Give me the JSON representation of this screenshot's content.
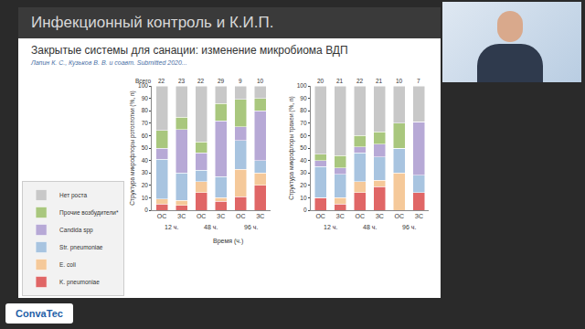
{
  "slide": {
    "title": "Инфекционный контроль и К.И.П.",
    "subtitle": "Закрытые системы для санации: изменение микробиома ВДП",
    "authors": "Лапин К. С., Кузьков В. В. и соавт. Submitted 2020..."
  },
  "logo": "ConvaTec",
  "chart_data": [
    {
      "type": "bar",
      "stacked": true,
      "grid": false,
      "legend": "bottom left",
      "y_label": "Структура микрофлоры ротоглотки (%, n)",
      "x_label": "Время (ч.)",
      "categories": [
        "ОС",
        "ЗС",
        "ОС",
        "ЗС",
        "ОС",
        "ЗС"
      ],
      "groups": [
        "12 ч.",
        "12 ч.",
        "48 ч.",
        "48 ч.",
        "96 ч.",
        "96 ч."
      ],
      "totals_label": "Всего",
      "totals": [
        22,
        23,
        22,
        29,
        9,
        10
      ],
      "ylim": [
        0,
        100
      ],
      "yticks": [
        0,
        10,
        20,
        30,
        40,
        50,
        60,
        70,
        80,
        90,
        100
      ],
      "series": [
        {
          "name": "K. pneumoniae",
          "color": "#e06666",
          "values": [
            5,
            4,
            14,
            7,
            11,
            20
          ]
        },
        {
          "name": "E. coli",
          "color": "#f5c99a",
          "values": [
            4,
            4,
            9,
            3,
            22,
            10
          ]
        },
        {
          "name": "Str. pneumoniae",
          "color": "#a8c4e0",
          "values": [
            32,
            22,
            9,
            17,
            23,
            10
          ]
        },
        {
          "name": "Candida spp",
          "color": "#b7a9d6",
          "values": [
            9,
            35,
            14,
            45,
            11,
            40
          ]
        },
        {
          "name": "Прочие возбудители*",
          "color": "#a9c77e",
          "values": [
            14,
            10,
            9,
            14,
            22,
            10
          ]
        },
        {
          "name": "Нет роста",
          "color": "#c8c8c8",
          "values": [
            36,
            25,
            45,
            14,
            11,
            10
          ]
        }
      ]
    },
    {
      "type": "bar",
      "stacked": true,
      "grid": false,
      "legend": false,
      "y_label": "Структура микрофлоры трахеи (%, n)",
      "categories": [
        "ОС",
        "ЗС",
        "ОС",
        "ЗС",
        "ОС",
        "ЗС"
      ],
      "groups": [
        "12 ч.",
        "12 ч.",
        "48 ч.",
        "48 ч.",
        "96 ч.",
        "96 ч."
      ],
      "totals": [
        20,
        21,
        22,
        21,
        10,
        7
      ],
      "ylim": [
        0,
        100
      ],
      "yticks": [
        0,
        10,
        20,
        30,
        40,
        50,
        60,
        70,
        80,
        90,
        100
      ],
      "series": [
        {
          "name": "K. pneumoniae",
          "color": "#e06666",
          "values": [
            10,
            5,
            14,
            19,
            0,
            14
          ]
        },
        {
          "name": "E. coli",
          "color": "#f5c99a",
          "values": [
            0,
            5,
            9,
            5,
            30,
            0
          ]
        },
        {
          "name": "Str. pneumoniae",
          "color": "#a8c4e0",
          "values": [
            25,
            19,
            23,
            19,
            20,
            14
          ]
        },
        {
          "name": "Candida spp",
          "color": "#b7a9d6",
          "values": [
            5,
            5,
            5,
            10,
            0,
            43
          ]
        },
        {
          "name": "Прочие возбудители*",
          "color": "#a9c77e",
          "values": [
            5,
            10,
            9,
            10,
            20,
            0
          ]
        },
        {
          "name": "Нет роста",
          "color": "#c8c8c8",
          "values": [
            55,
            56,
            40,
            37,
            30,
            29
          ]
        }
      ]
    }
  ]
}
